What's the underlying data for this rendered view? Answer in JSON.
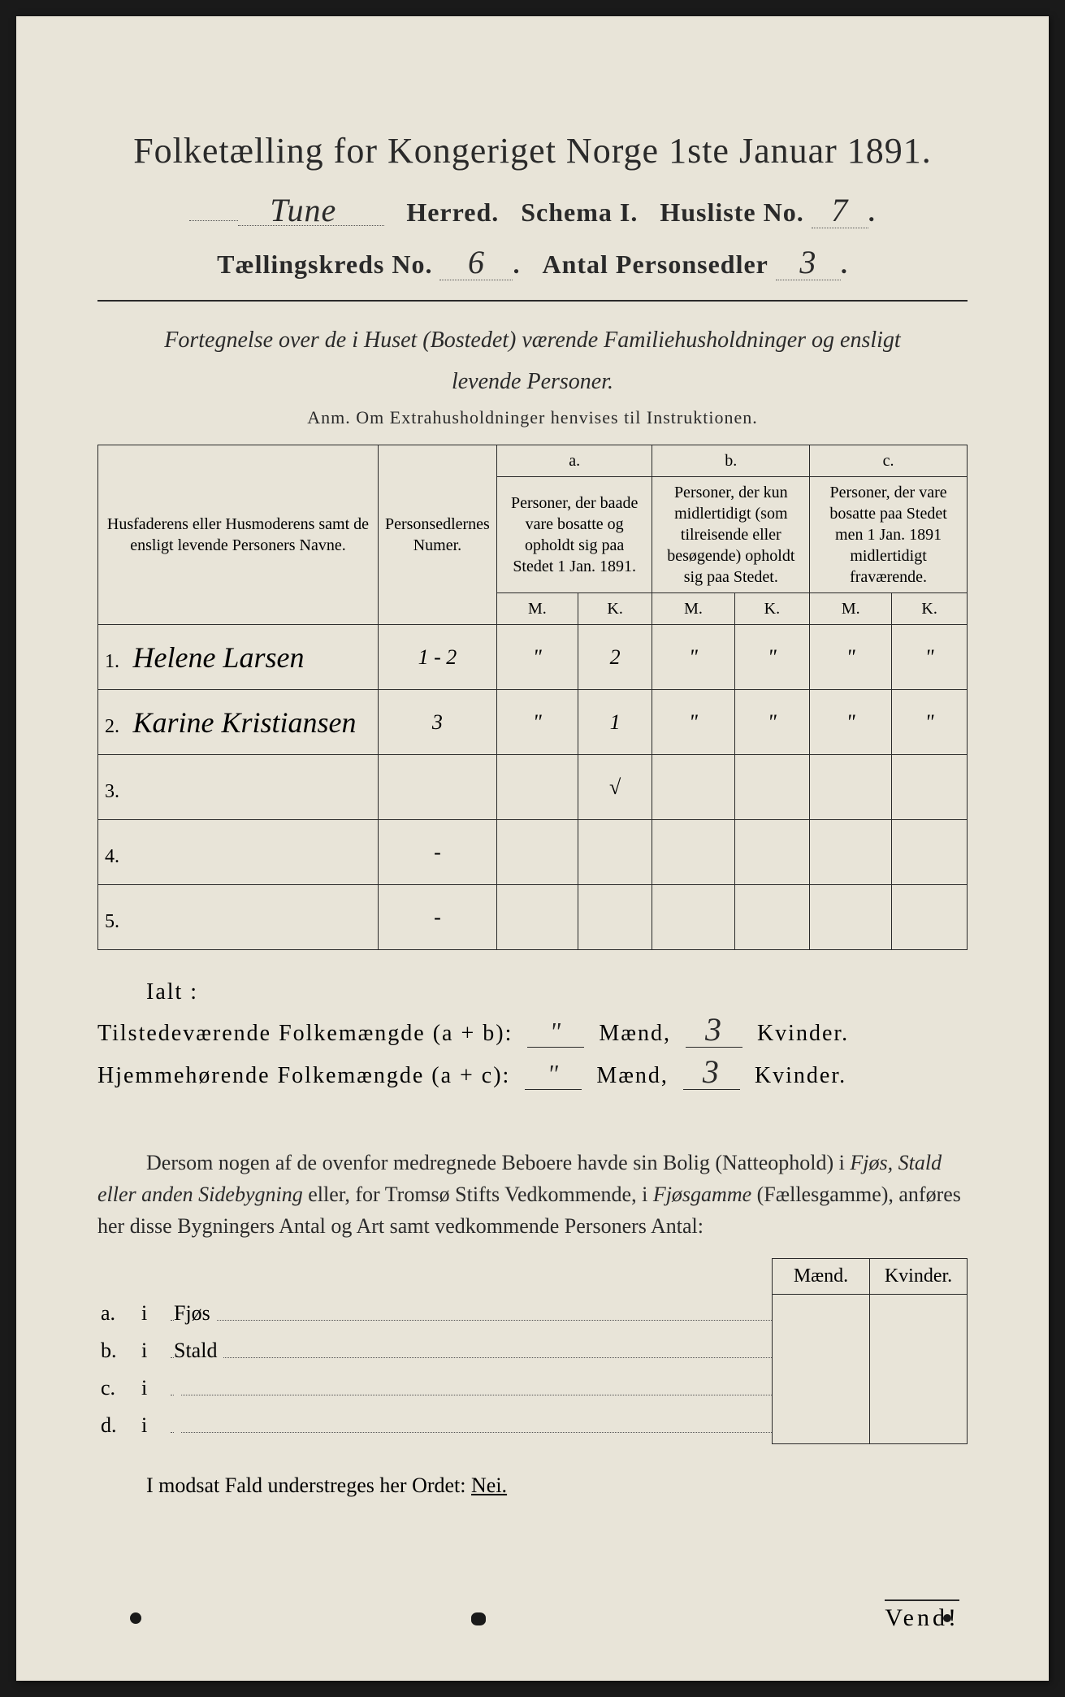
{
  "title": "Folketælling for Kongeriget Norge 1ste Januar 1891.",
  "header": {
    "herred_name": "Tune",
    "herred_label": "Herred.",
    "schema_label": "Schema I.",
    "husliste_label": "Husliste No.",
    "husliste_no": "7",
    "kreds_label": "Tællingskreds No.",
    "kreds_no": "6",
    "personsedler_label": "Antal Personsedler",
    "personsedler_no": "3"
  },
  "instruction_line1": "Fortegnelse over de i Huset (Bostedet) værende Familiehusholdninger og ensligt",
  "instruction_line2": "levende Personer.",
  "anm": "Anm.   Om Extrahusholdninger henvises til Instruktionen.",
  "table": {
    "col_name": "Husfaderens eller Husmoderens samt de ensligt levende Personers Navne.",
    "col_nr": "Personsedlernes Numer.",
    "col_a_top": "a.",
    "col_a": "Personer, der baade vare bosatte og opholdt sig paa Stedet 1 Jan. 1891.",
    "col_b_top": "b.",
    "col_b": "Personer, der kun midlertidigt (som tilreisende eller besøgende) opholdt sig paa Stedet.",
    "col_c_top": "c.",
    "col_c": "Personer, der vare bosatte paa Stedet men 1 Jan. 1891 midlertidigt fraværende.",
    "m": "M.",
    "k": "K.",
    "rows": [
      {
        "n": "1.",
        "name": "Helene Larsen",
        "nr": "1 - 2",
        "am": "\"",
        "ak": "2",
        "bm": "\"",
        "bk": "\"",
        "cm": "\"",
        "ck": "\""
      },
      {
        "n": "2.",
        "name": "Karine Kristiansen",
        "nr": "3",
        "am": "\"",
        "ak": "1",
        "bm": "\"",
        "bk": "\"",
        "cm": "\"",
        "ck": "\""
      },
      {
        "n": "3.",
        "name": "",
        "nr": "",
        "am": "",
        "ak": "√",
        "bm": "",
        "bk": "",
        "cm": "",
        "ck": ""
      },
      {
        "n": "4.",
        "name": "",
        "nr": "-",
        "am": "",
        "ak": "",
        "bm": "",
        "bk": "",
        "cm": "",
        "ck": ""
      },
      {
        "n": "5.",
        "name": "",
        "nr": "-",
        "am": "",
        "ak": "",
        "bm": "",
        "bk": "",
        "cm": "",
        "ck": ""
      }
    ]
  },
  "summary": {
    "ialt": "Ialt :",
    "line1_label": "Tilstedeværende Folkemængde (a + b):",
    "line2_label": "Hjemmehørende Folkemængde (a + c):",
    "maend": "Mænd,",
    "kvinder": "Kvinder.",
    "m1": "\"",
    "k1": "3",
    "m2": "\"",
    "k2": "3"
  },
  "paragraph": "Dersom nogen af de ovenfor medregnede Beboere havde sin Bolig (Natteophold) i Fjøs, Stald eller anden Sidebygning eller, for Tromsø Stifts Vedkommende, i Fjøsgamme (Fællesgamme), anføres her disse Bygningers Antal og Art samt vedkommende Personers Antal:",
  "outbuildings": {
    "head_m": "Mænd.",
    "head_k": "Kvinder.",
    "rows": [
      {
        "letter": "a.",
        "i": "i",
        "label": "Fjøs"
      },
      {
        "letter": "b.",
        "i": "i",
        "label": "Stald"
      },
      {
        "letter": "c.",
        "i": "i",
        "label": ""
      },
      {
        "letter": "d.",
        "i": "i",
        "label": ""
      }
    ]
  },
  "closing": "I modsat Fald understreges her Ordet: ",
  "closing_nei": "Nei.",
  "vend": "Vend!",
  "colors": {
    "paper": "#e8e4d8",
    "ink": "#2a2a2a",
    "background": "#1a1a1a"
  }
}
